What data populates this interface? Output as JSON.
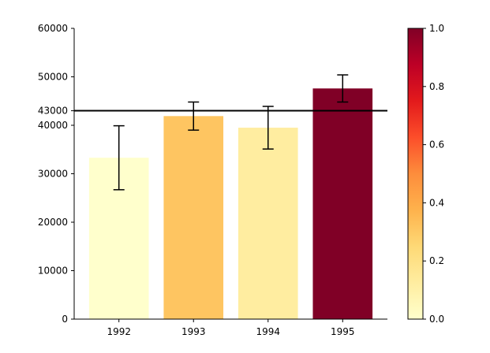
{
  "chart_data": {
    "type": "bar",
    "title": "",
    "xlabel": "",
    "ylabel": "",
    "categories": [
      "1992",
      "1993",
      "1994",
      "1995"
    ],
    "values": [
      33300,
      41900,
      39500,
      47600
    ],
    "errors": [
      6600,
      2900,
      4400,
      2800
    ],
    "bar_colors": [
      "#ffffcc",
      "#fec561",
      "#ffeda0",
      "#800026"
    ],
    "ylim": [
      0,
      60000
    ],
    "yticks": [
      0,
      10000,
      20000,
      30000,
      40000,
      50000,
      60000
    ],
    "ytick_labels": [
      "0",
      "10000",
      "20000",
      "30000",
      "40000",
      "50000",
      "60000"
    ],
    "reference_line": {
      "value": 43000,
      "label": "43000",
      "color": "#000000"
    },
    "colorbar": {
      "range": [
        0,
        1
      ],
      "ticks": [
        "0.0",
        "0.2",
        "0.4",
        "0.6",
        "0.8",
        "1.0"
      ],
      "colormap": "YlOrRd",
      "stops": [
        "#ffffcc",
        "#ffeda0",
        "#fed976",
        "#feb24c",
        "#fd8d3c",
        "#fc4e2a",
        "#e31a1c",
        "#bd0026",
        "#800026"
      ]
    }
  }
}
